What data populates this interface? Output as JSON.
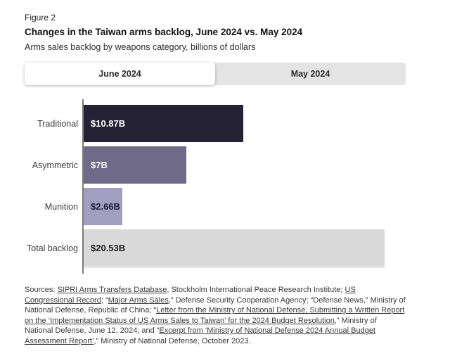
{
  "header": {
    "figure_label": "Figure 2",
    "title": "Changes in the Taiwan arms backlog, June 2024 vs. May 2024",
    "subtitle": "Arms sales backlog by weapons category, billions of dollars"
  },
  "tabs": [
    {
      "label": "June 2024",
      "active": true
    },
    {
      "label": "May 2024",
      "active": false
    }
  ],
  "chart_data": {
    "type": "bar",
    "orientation": "horizontal",
    "title": "Changes in the Taiwan arms backlog, June 2024 vs. May 2024",
    "subtitle": "Arms sales backlog by weapons category, billions of dollars",
    "unit": "billions of dollars",
    "selected_series": "June 2024",
    "categories": [
      "Traditional",
      "Asymmetric",
      "Munition",
      "Total backlog"
    ],
    "values": [
      10.87,
      7.0,
      2.66,
      20.53
    ],
    "value_labels": [
      "$10.87B",
      "$7B",
      "$2.66B",
      "$20.53B"
    ],
    "bar_colors": [
      "#262236",
      "#6e6a87",
      "#a29ec0",
      "#d9d9d9"
    ],
    "value_label_colors": [
      "#ffffff",
      "#ffffff",
      "#24203a",
      "#1f1f1f"
    ],
    "xmax": 20.53,
    "grid": false,
    "legend_position": "top-tabs"
  },
  "colors": {
    "tab_strip_bg": "#e4e4e4",
    "tab_active_bg": "#ffffff",
    "axis_line": "#7b7b7b",
    "baseline": "#dcdcdc"
  },
  "sources": {
    "segments": [
      {
        "text": "Sources: ",
        "link": false
      },
      {
        "text": "SIPRI Arms Transfers Database",
        "link": true
      },
      {
        "text": ", Stockholm International Peace Research Institute; ",
        "link": false
      },
      {
        "text": "US Congressional Record",
        "link": true
      },
      {
        "text": "; “Major Arms Sales",
        "link": false,
        "link_part": false
      },
      {
        "text": "",
        "link": false
      },
      {
        "text": ",” Defense Security Cooperation Agency; “Defense News,” Ministry of National Defense, Republic of China; “",
        "link": false
      },
      {
        "text": "Letter from the Ministry of National Defense, Submitting a Written Report on the ‘Implementation Status of US Arms Sales to Taiwan’ for the 2024 Budget Resolution",
        "link": true
      },
      {
        "text": ",” Ministry of National Defense, June 12, 2024; and “",
        "link": false
      },
      {
        "text": "Excerpt from ‘Ministry of National Defense 2024 Annual Budget Assessment Report’",
        "link": true
      },
      {
        "text": ",” Ministry of National Defense, October 2023.",
        "link": false
      }
    ]
  }
}
